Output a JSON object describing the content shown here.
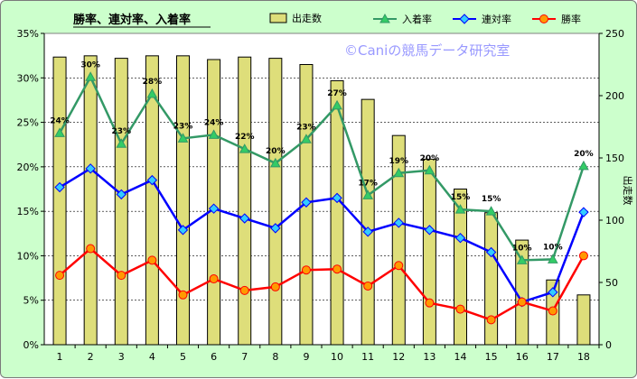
{
  "chart_data": {
    "type": "bar+line",
    "title": "勝率、連対率、入着率",
    "watermark": "©Caniの競馬データ研究室",
    "x": [
      "1",
      "2",
      "3",
      "4",
      "5",
      "6",
      "7",
      "8",
      "9",
      "10",
      "11",
      "12",
      "13",
      "14",
      "15",
      "16",
      "17",
      "18"
    ],
    "left_axis": {
      "min": 0,
      "max": 35,
      "step": 5,
      "unit": "%"
    },
    "right_axis": {
      "min": 0,
      "max": 250,
      "step": 50,
      "label": "出走数"
    },
    "bar_series": {
      "name": "出走数",
      "color": "#dede7a",
      "values": [
        231,
        232,
        230,
        232,
        232,
        229,
        231,
        230,
        225,
        212,
        197,
        168,
        149,
        125,
        106,
        84,
        52,
        40
      ]
    },
    "series": [
      {
        "name": "入着率",
        "color": "#339966",
        "marker": "triangle",
        "values": [
          23.8,
          30.1,
          22.6,
          28.2,
          23.2,
          23.6,
          22.0,
          20.4,
          23.1,
          26.9,
          16.8,
          19.3,
          19.6,
          15.2,
          15.0,
          9.5,
          9.6,
          20.1
        ],
        "labels": [
          "24%",
          "30%",
          "23%",
          "28%",
          "23%",
          "24%",
          "22%",
          "20%",
          "23%",
          "27%",
          "17%",
          "19%",
          "20%",
          "15%",
          "15%",
          "10%",
          "10%",
          "20%"
        ]
      },
      {
        "name": "連対率",
        "color": "#0000ff",
        "marker": "diamond",
        "values": [
          17.7,
          19.8,
          16.9,
          18.5,
          12.9,
          15.3,
          14.2,
          13.1,
          16.0,
          16.5,
          12.7,
          13.7,
          12.9,
          12.0,
          10.4,
          4.8,
          5.9,
          14.9
        ]
      },
      {
        "name": "勝率",
        "color": "#ff0000",
        "marker": "circle",
        "values": [
          7.8,
          10.8,
          7.8,
          9.5,
          5.6,
          7.4,
          6.1,
          6.5,
          8.4,
          8.5,
          6.6,
          8.9,
          4.7,
          4.0,
          2.8,
          4.8,
          3.8,
          10.0
        ]
      }
    ]
  }
}
